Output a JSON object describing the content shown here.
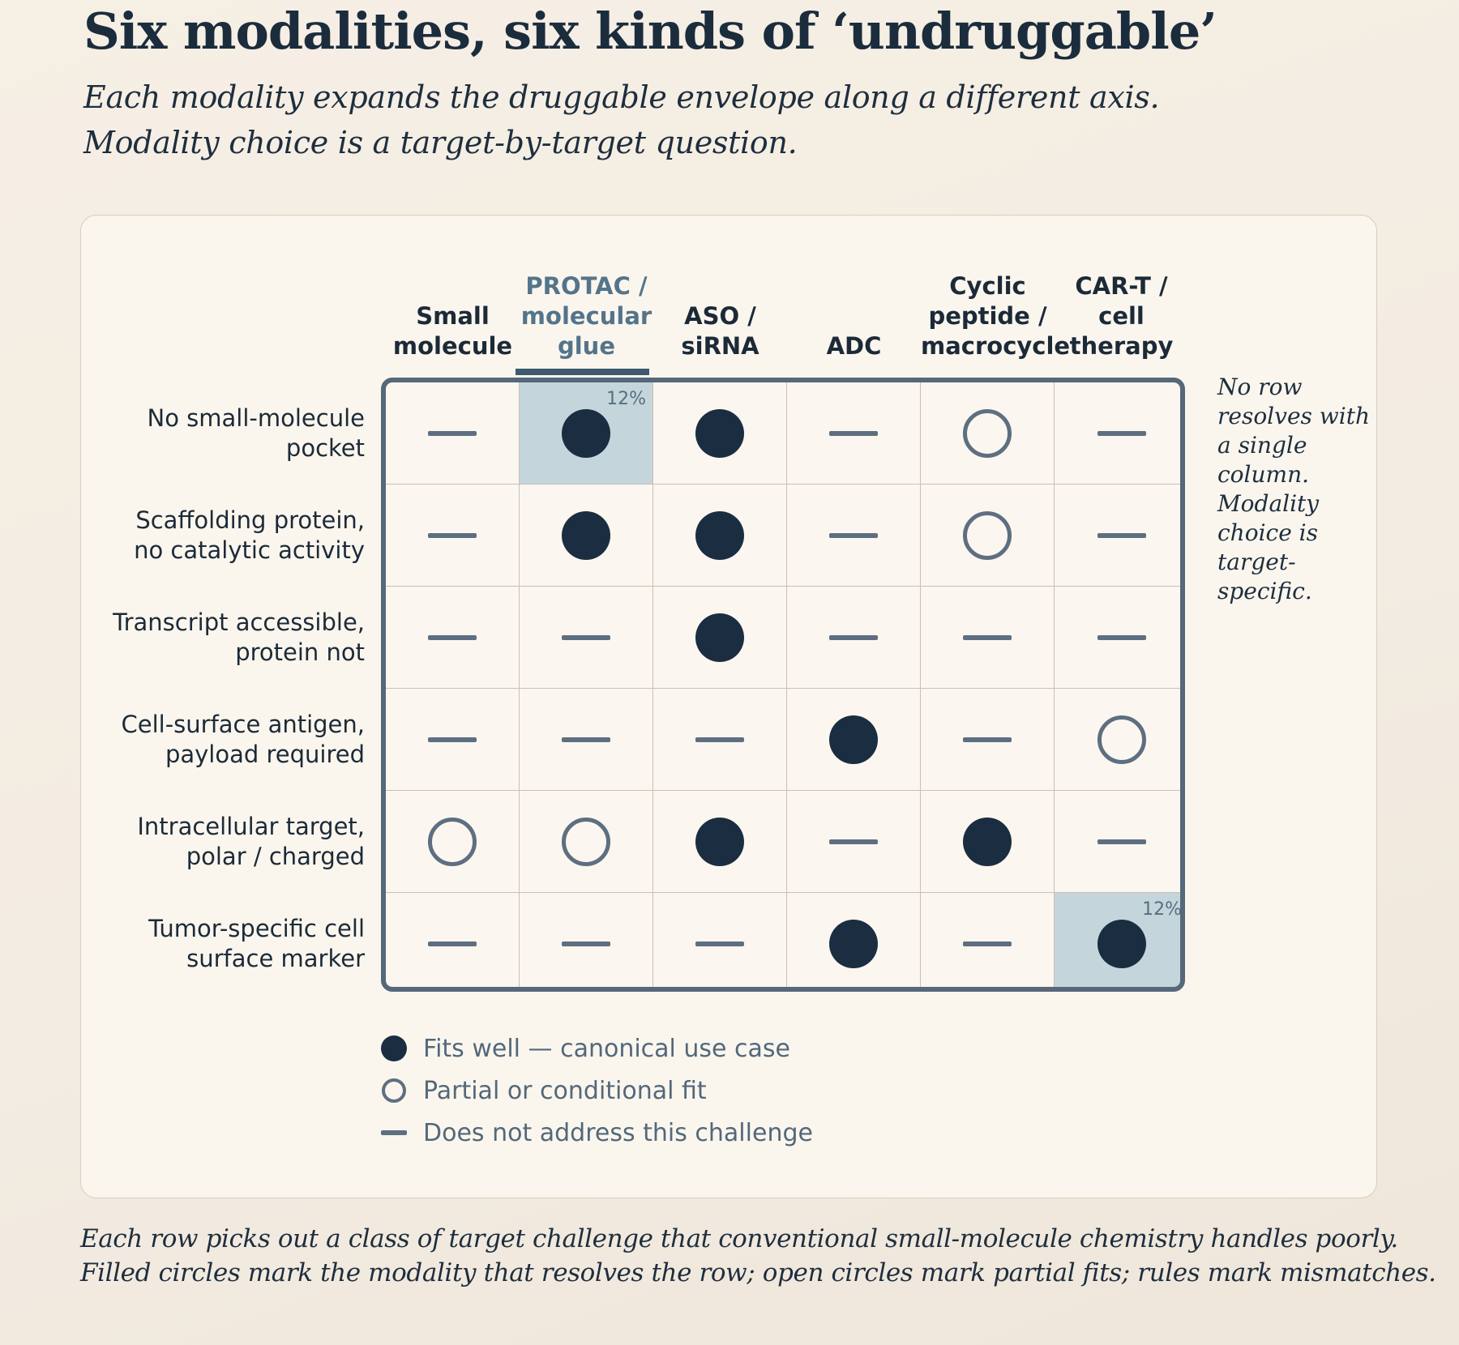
{
  "title": "Six modalities, six kinds of ‘undruggable’",
  "subtitle": [
    "Each modality expands the druggable envelope along a different axis.",
    "Modality choice is a target-by-target question."
  ],
  "columns": [
    {
      "lines": [
        "Small",
        "molecule"
      ],
      "highlight": false
    },
    {
      "lines": [
        "PROTAC /",
        "molecular",
        "glue"
      ],
      "highlight": true
    },
    {
      "lines": [
        "ASO /",
        "siRNA"
      ],
      "highlight": false
    },
    {
      "lines": [
        "ADC"
      ],
      "highlight": false
    },
    {
      "lines": [
        "Cyclic",
        "peptide /",
        "macrocycle"
      ],
      "highlight": false
    },
    {
      "lines": [
        "CAR-T /",
        "cell",
        "therapy"
      ],
      "highlight": false
    }
  ],
  "rows": [
    {
      "lines": [
        "No small-molecule",
        "pocket"
      ],
      "marks": [
        "none",
        "full",
        "full",
        "none",
        "partial",
        "none"
      ],
      "highlight": {
        "col": 1,
        "label": "12%"
      }
    },
    {
      "lines": [
        "Scaffolding protein,",
        "no catalytic activity"
      ],
      "marks": [
        "none",
        "full",
        "full",
        "none",
        "partial",
        "none"
      ]
    },
    {
      "lines": [
        "Transcript accessible,",
        "protein not"
      ],
      "marks": [
        "none",
        "none",
        "full",
        "none",
        "none",
        "none"
      ]
    },
    {
      "lines": [
        "Cell-surface antigen,",
        "payload required"
      ],
      "marks": [
        "none",
        "none",
        "none",
        "full",
        "none",
        "partial"
      ]
    },
    {
      "lines": [
        "Intracellular target,",
        "polar / charged"
      ],
      "marks": [
        "partial",
        "partial",
        "full",
        "none",
        "full",
        "none"
      ]
    },
    {
      "lines": [
        "Tumor-specific cell",
        "surface marker"
      ],
      "marks": [
        "none",
        "none",
        "none",
        "full",
        "none",
        "full"
      ],
      "highlight": {
        "col": 5,
        "label": "12%"
      }
    }
  ],
  "side_note": "No row resolves with a single column. Modality choice is target-specific.",
  "legend": [
    {
      "symbol": "full",
      "label": "Fits well — canonical use case"
    },
    {
      "symbol": "partial",
      "label": "Partial or conditional fit"
    },
    {
      "symbol": "none",
      "label": "Does not address this challenge"
    }
  ],
  "caption": [
    "Each row picks out a class of target challenge that conventional small-molecule chemistry handles poorly.",
    "Filled circles mark the modality that resolves the row; open circles mark partial fits; rules mark mismatches."
  ],
  "colors": {
    "background": "#f5eee4",
    "ink": "#1b2c3d",
    "filled_mark": "#1b2d40",
    "open_mark": "#5d6f80",
    "highlight_cell": "#c4d5dc",
    "highlight_header": "#54748a"
  }
}
